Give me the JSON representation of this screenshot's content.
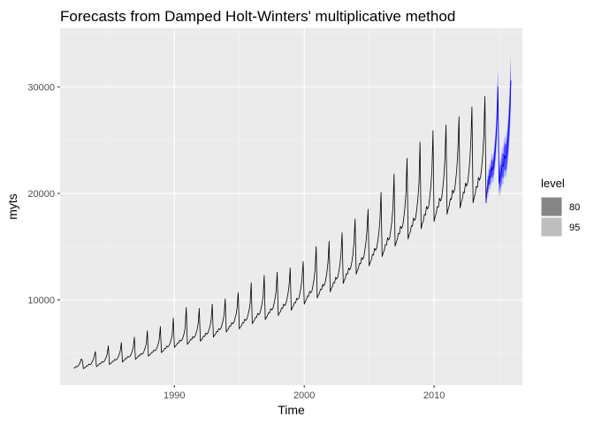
{
  "chart_data": {
    "type": "line",
    "title": "Forecasts from Damped Holt-Winters' multiplicative method",
    "xlabel": "Time",
    "ylabel": "myts",
    "xlim": [
      1981.2,
      2016.8
    ],
    "ylim": [
      2000,
      35500
    ],
    "x_ticks": [
      1990,
      2000,
      2010
    ],
    "x_tick_labels": [
      "1990",
      "2000",
      "2010"
    ],
    "y_ticks": [
      10000,
      20000,
      30000
    ],
    "y_tick_labels": [
      "10000",
      "20000",
      "30000"
    ],
    "grid": true,
    "legend": {
      "title": "level",
      "placement": "right",
      "entries": [
        {
          "label": "80",
          "color": "#858585"
        },
        {
          "label": "95",
          "color": "#bebebe"
        }
      ]
    },
    "series": [
      {
        "role": "history",
        "frequency": 12,
        "start": [
          1982,
          4
        ],
        "color": "#000000",
        "annual_levels": [
          {
            "year": 1982,
            "base": 3450,
            "peak": 4300
          },
          {
            "year": 1983,
            "base": 3650,
            "peak": 5150
          },
          {
            "year": 1984,
            "base": 3850,
            "peak": 5700
          },
          {
            "year": 1985,
            "base": 4050,
            "peak": 6000
          },
          {
            "year": 1986,
            "base": 4300,
            "peak": 6500
          },
          {
            "year": 1987,
            "base": 4550,
            "peak": 7100
          },
          {
            "year": 1988,
            "base": 4850,
            "peak": 7500
          },
          {
            "year": 1989,
            "base": 5200,
            "peak": 8300
          },
          {
            "year": 1990,
            "base": 5700,
            "peak": 9300
          },
          {
            "year": 1991,
            "base": 6000,
            "peak": 9200
          },
          {
            "year": 1992,
            "base": 6300,
            "peak": 9600
          },
          {
            "year": 1993,
            "base": 6700,
            "peak": 10100
          },
          {
            "year": 1994,
            "base": 7200,
            "peak": 10700
          },
          {
            "year": 1995,
            "base": 7500,
            "peak": 11600
          },
          {
            "year": 1996,
            "base": 8000,
            "peak": 12300
          },
          {
            "year": 1997,
            "base": 8400,
            "peak": 12600
          },
          {
            "year": 1998,
            "base": 8800,
            "peak": 13000
          },
          {
            "year": 1999,
            "base": 9300,
            "peak": 13600
          },
          {
            "year": 2000,
            "base": 9900,
            "peak": 15000
          },
          {
            "year": 2001,
            "base": 10500,
            "peak": 15500
          },
          {
            "year": 2002,
            "base": 11100,
            "peak": 16300
          },
          {
            "year": 2003,
            "base": 11900,
            "peak": 17600
          },
          {
            "year": 2004,
            "base": 12800,
            "peak": 18500
          },
          {
            "year": 2005,
            "base": 13600,
            "peak": 20100
          },
          {
            "year": 2006,
            "base": 14500,
            "peak": 21800
          },
          {
            "year": 2007,
            "base": 15500,
            "peak": 23300
          },
          {
            "year": 2008,
            "base": 16200,
            "peak": 24800
          },
          {
            "year": 2009,
            "base": 17200,
            "peak": 25900
          },
          {
            "year": 2010,
            "base": 17900,
            "peak": 26400
          },
          {
            "year": 2011,
            "base": 18600,
            "peak": 27200
          },
          {
            "year": 2012,
            "base": 19200,
            "peak": 28100
          },
          {
            "year": 2013,
            "base": 19700,
            "peak": 29100
          }
        ],
        "end": [
          2014,
          1
        ]
      },
      {
        "role": "forecast",
        "frequency": 12,
        "start": [
          2014,
          2
        ],
        "color": "#0000ff",
        "annual_levels": [
          {
            "year": 2014,
            "base": 20600,
            "peak": 30000
          },
          {
            "year": 2015,
            "base": 21600,
            "peak": 30600
          }
        ],
        "end": [
          2015,
          12
        ]
      }
    ],
    "intervals": [
      {
        "level": "95",
        "color": "#b8b8ff",
        "relative_halfwidth_start": 0.05,
        "relative_halfwidth_end": 0.09
      },
      {
        "level": "80",
        "color": "#5050ff",
        "relative_halfwidth_start": 0.03,
        "relative_halfwidth_end": 0.06
      }
    ],
    "seasonal_shape": [
      0.97,
      0.99,
      1.0,
      1.03,
      1.02,
      1.06,
      1.04,
      1.05,
      1.09,
      1.14,
      1.22,
      1.0
    ]
  }
}
